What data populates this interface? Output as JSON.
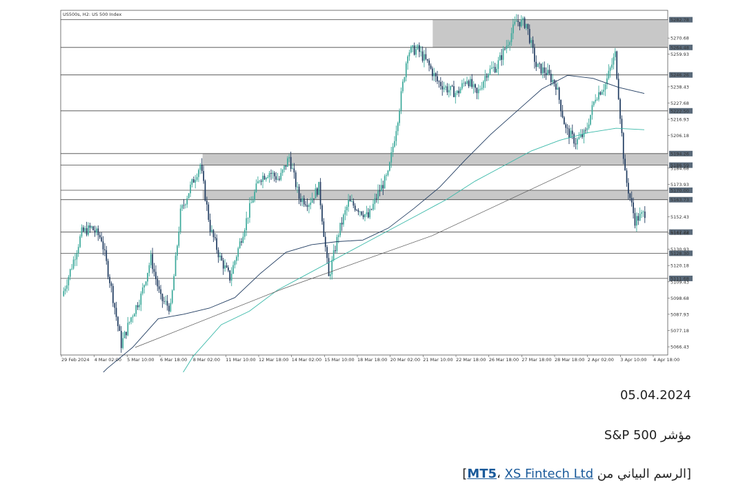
{
  "chart_data": {
    "type": "candlestick",
    "title": "US500s, H2: US 500 Index",
    "y_ticks": [
      "5270.68",
      "5259.93",
      "5238.43",
      "5227.68",
      "5216.93",
      "5206.18",
      "5173.93",
      "5152.43",
      "5130.93",
      "5120.18",
      "5098.68",
      "5087.93",
      "5077.18",
      "5066.43"
    ],
    "level_labels": [
      "5282.78",
      "5264.48",
      "5246.26",
      "5222.50",
      "5194.26",
      "5186.59",
      "5170.00",
      "5163.73",
      "5142.32",
      "5128.30",
      "5111.68"
    ],
    "hidden_tick_labels": [
      "5184.68",
      "5141.68",
      "5109.43"
    ],
    "x_ticks": [
      "29 Feb 2024",
      "4 Mar 02:00",
      "5 Mar 10:00",
      "6 Mar 18:00",
      "8 Mar 02:00",
      "11 Mar 10:00",
      "12 Mar 18:00",
      "14 Mar 02:00",
      "15 Mar 10:00",
      "18 Mar 18:00",
      "20 Mar 02:00",
      "21 Mar 10:00",
      "22 Mar 18:00",
      "26 Mar 18:00",
      "27 Mar 18:00",
      "28 Mar 18:00",
      "2 Apr 02:00",
      "3 Apr 10:00",
      "4 Apr 18:00"
    ],
    "y_range": [
      5061,
      5289
    ],
    "grid": false,
    "zones": [
      {
        "from_x": "21 Mar 10:00",
        "y_range": [
          5264.48,
          5282.78
        ]
      },
      {
        "from_x": "8 Mar 02:00",
        "y_range": [
          5186.59,
          5194.26
        ]
      },
      {
        "from_x": "8 Mar 02:00",
        "y_range": [
          5163.73,
          5170.0
        ]
      }
    ],
    "price_path": [
      5100,
      5120,
      5142,
      5145,
      5138,
      5105,
      5068,
      5086,
      5100,
      5125,
      5098,
      5092,
      5155,
      5172,
      5187,
      5145,
      5125,
      5112,
      5135,
      5158,
      5178,
      5182,
      5177,
      5192,
      5165,
      5162,
      5172,
      5112,
      5142,
      5162,
      5158,
      5152,
      5168,
      5180,
      5218,
      5262,
      5263,
      5254,
      5242,
      5237,
      5234,
      5244,
      5233,
      5248,
      5252,
      5266,
      5282,
      5280,
      5252,
      5248,
      5240,
      5210,
      5202,
      5208,
      5232,
      5240,
      5260,
      5180,
      5150,
      5155
    ],
    "ma_slow": [
      5035,
      5052,
      5066,
      5085,
      5088,
      5092,
      5099,
      5115,
      5129,
      5134,
      5136,
      5137,
      5145,
      5158,
      5172,
      5190,
      5207,
      5222,
      5237,
      5246,
      5244,
      5238,
      5234
    ],
    "ma_trend": [
      5005,
      5030,
      5060,
      5081,
      5090,
      5104,
      5114,
      5124,
      5134,
      5144,
      5154,
      5164,
      5176,
      5186,
      5196,
      5203,
      5208,
      5211,
      5210
    ],
    "regression_line": [
      5066,
      5105,
      5140,
      5186
    ]
  },
  "captions": {
    "date": "05.04.2024",
    "index": "مؤشر S&P 500",
    "source_prefix": "[الرسم البياني من ",
    "source_bold": "MT5",
    "source_sep": "، ",
    "source_link": "XS Fintech Ltd",
    "source_suffix": "]"
  },
  "colors": {
    "bull": "#3aa89a",
    "bear": "#1e3a5f",
    "ma_slow": "#1e3a5f",
    "ma_trend": "#38b8a8",
    "zone": "#c8c8c8",
    "level": "#444444",
    "axis": "#555555"
  }
}
